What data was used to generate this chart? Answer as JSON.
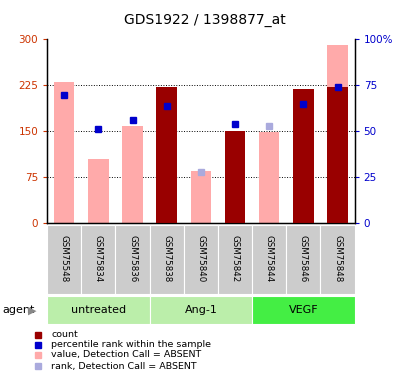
{
  "title": "GDS1922 / 1398877_at",
  "samples": [
    "GSM75548",
    "GSM75834",
    "GSM75836",
    "GSM75838",
    "GSM75840",
    "GSM75842",
    "GSM75844",
    "GSM75846",
    "GSM75848"
  ],
  "pink_bar_heights": [
    230,
    105,
    158,
    0,
    85,
    0,
    149,
    0,
    291
  ],
  "dark_red_bar_heights": [
    0,
    0,
    0,
    222,
    0,
    151,
    0,
    219,
    222
  ],
  "blue_square_values_pct": [
    70,
    51,
    56,
    64,
    null,
    54,
    null,
    65,
    74
  ],
  "light_blue_square_values_pct": [
    null,
    null,
    null,
    null,
    28,
    null,
    53,
    null,
    null
  ],
  "ylim_left": [
    0,
    300
  ],
  "ylim_right": [
    0,
    100
  ],
  "yticks_left": [
    0,
    75,
    150,
    225,
    300
  ],
  "yticks_right": [
    0,
    25,
    50,
    75,
    100
  ],
  "ytick_labels_left": [
    "0",
    "75",
    "150",
    "225",
    "300"
  ],
  "ytick_labels_right": [
    "0",
    "25",
    "50",
    "75",
    "100%"
  ],
  "left_axis_color": "#cc3300",
  "right_axis_color": "#0000cc",
  "pink_bar_color": "#ffaaaa",
  "dark_red_color": "#990000",
  "blue_square_color": "#0000cc",
  "light_blue_square_color": "#aaaadd",
  "group_info": [
    {
      "label": "untreated",
      "start": 0,
      "end": 3,
      "color": "#bbeeaa"
    },
    {
      "label": "Ang-1",
      "start": 3,
      "end": 6,
      "color": "#bbeeaa"
    },
    {
      "label": "VEGF",
      "start": 6,
      "end": 9,
      "color": "#44ee44"
    }
  ],
  "agent_label": "agent",
  "legend_items": [
    {
      "color": "#990000",
      "label": "count"
    },
    {
      "color": "#0000cc",
      "label": "percentile rank within the sample"
    },
    {
      "color": "#ffaaaa",
      "label": "value, Detection Call = ABSENT"
    },
    {
      "color": "#aaaadd",
      "label": "rank, Detection Call = ABSENT"
    }
  ]
}
